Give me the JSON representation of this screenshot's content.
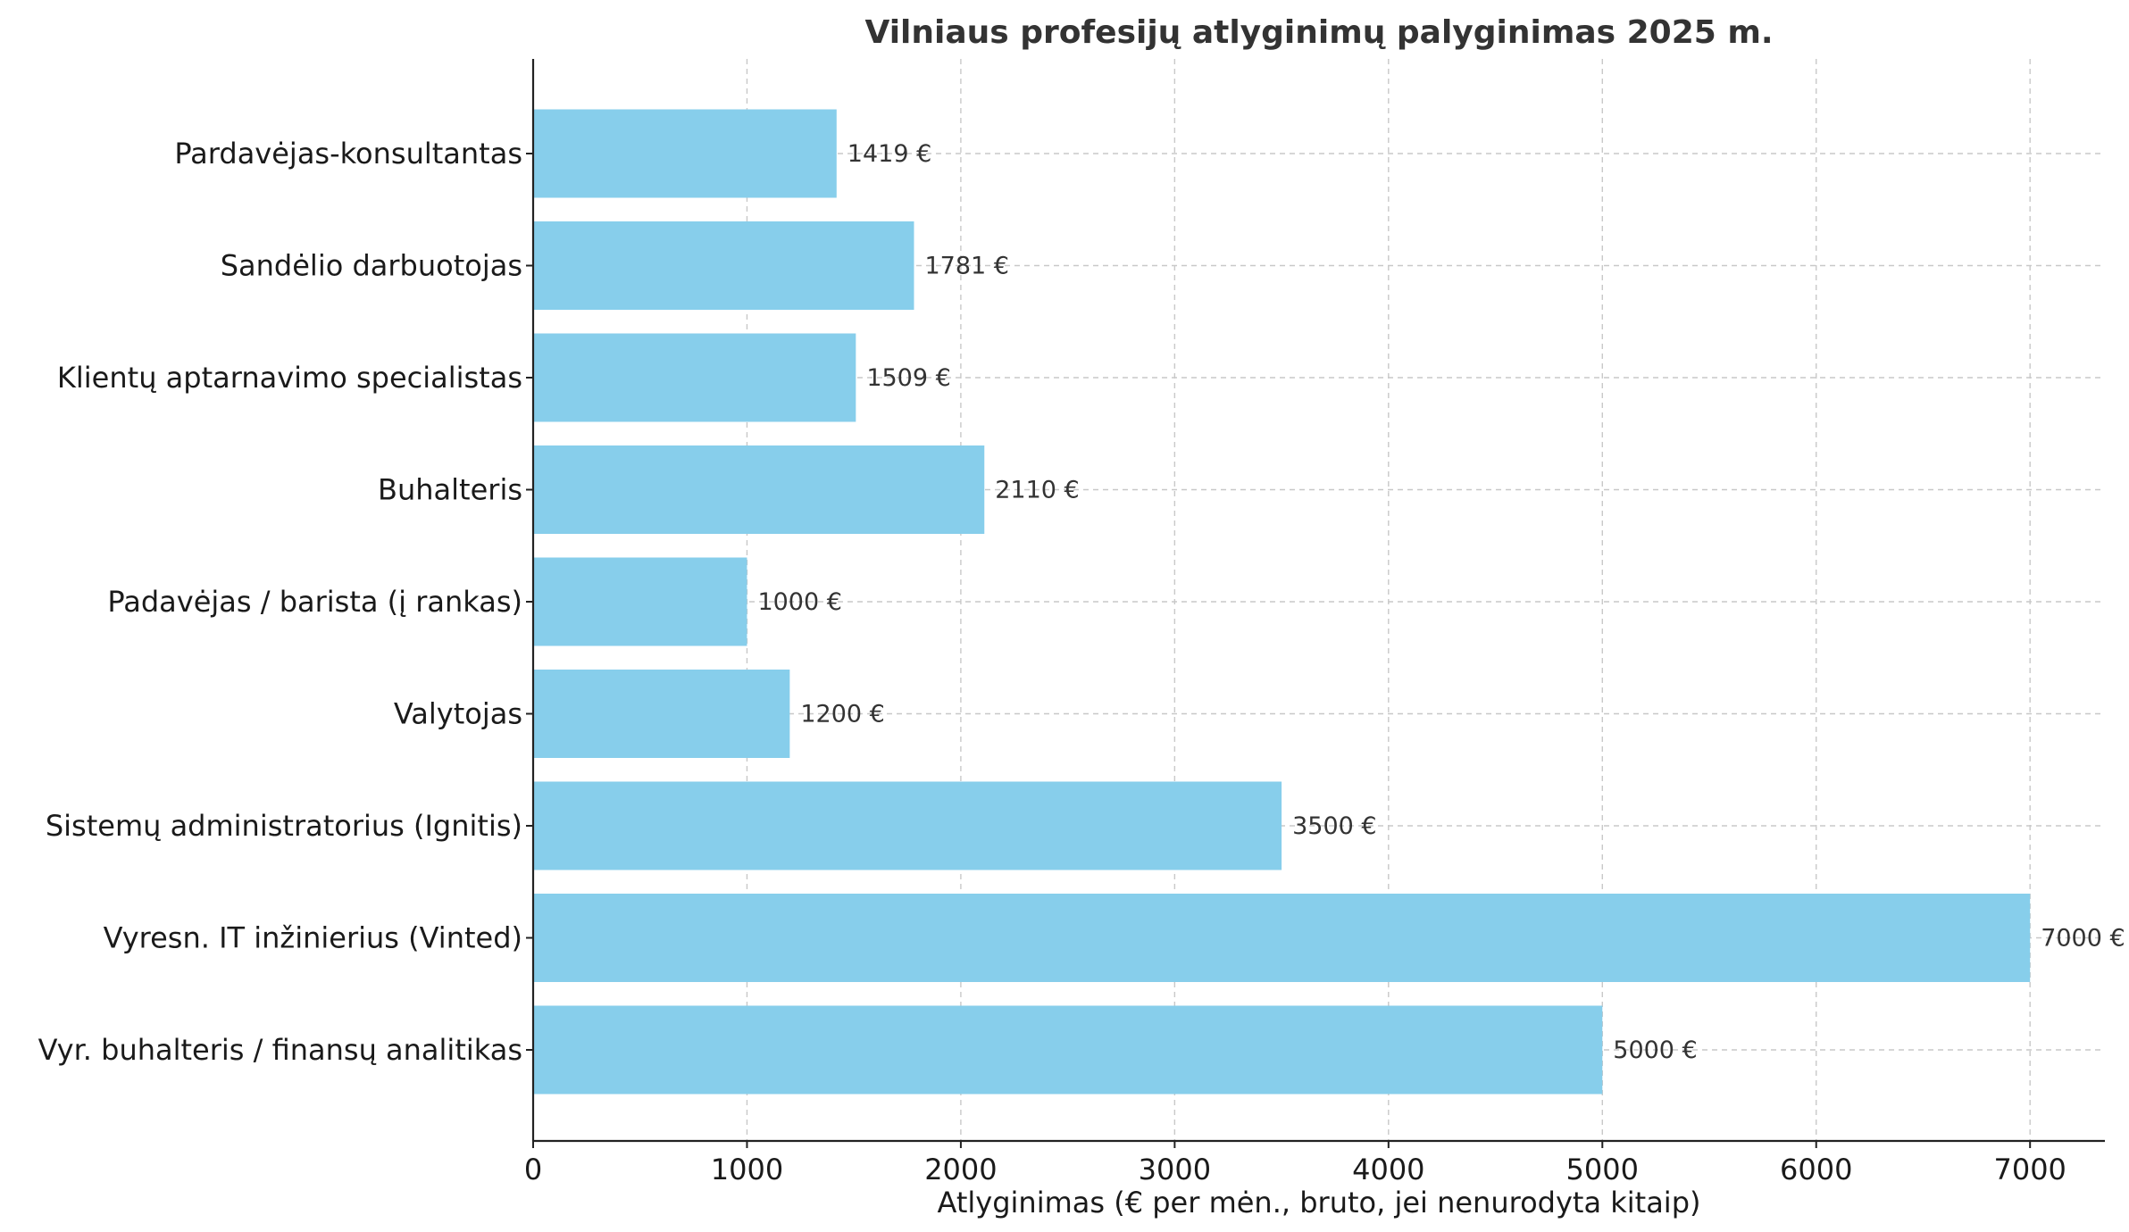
{
  "chart_data": {
    "type": "bar",
    "orientation": "horizontal",
    "title": "Vilniaus profesijų atlyginimų palyginimas 2025 m.",
    "xlabel": "Atlyginimas (€ per mėn., bruto, jei nenurodyta kitaip)",
    "ylabel": "",
    "categories": [
      "Pardavėjas-konsultantas",
      "Sandėlio darbuotojas",
      "Klientų aptarnavimo specialistas",
      "Buhalteris",
      "Padavėjas / barista (į rankas)",
      "Valytojas",
      "Sistemų administratorius (Ignitis)",
      "Vyresn. IT inžinierius (Vinted)",
      "Vyr. buhalteris / finansų analitikas"
    ],
    "values": [
      1419,
      1781,
      1509,
      2110,
      1000,
      1200,
      3500,
      7000,
      5000
    ],
    "value_labels": [
      "1419 €",
      "1781 €",
      "1509 €",
      "2110 €",
      "1000 €",
      "1200 €",
      "3500 €",
      "7000 €",
      "5000 €"
    ],
    "xlim": [
      0,
      7350
    ],
    "xticks": [
      0,
      1000,
      2000,
      3000,
      4000,
      5000,
      6000,
      7000
    ],
    "xtick_labels": [
      "0",
      "1000",
      "2000",
      "3000",
      "4000",
      "5000",
      "6000",
      "7000"
    ],
    "grid": true,
    "bar_color": "#87CEEB"
  }
}
